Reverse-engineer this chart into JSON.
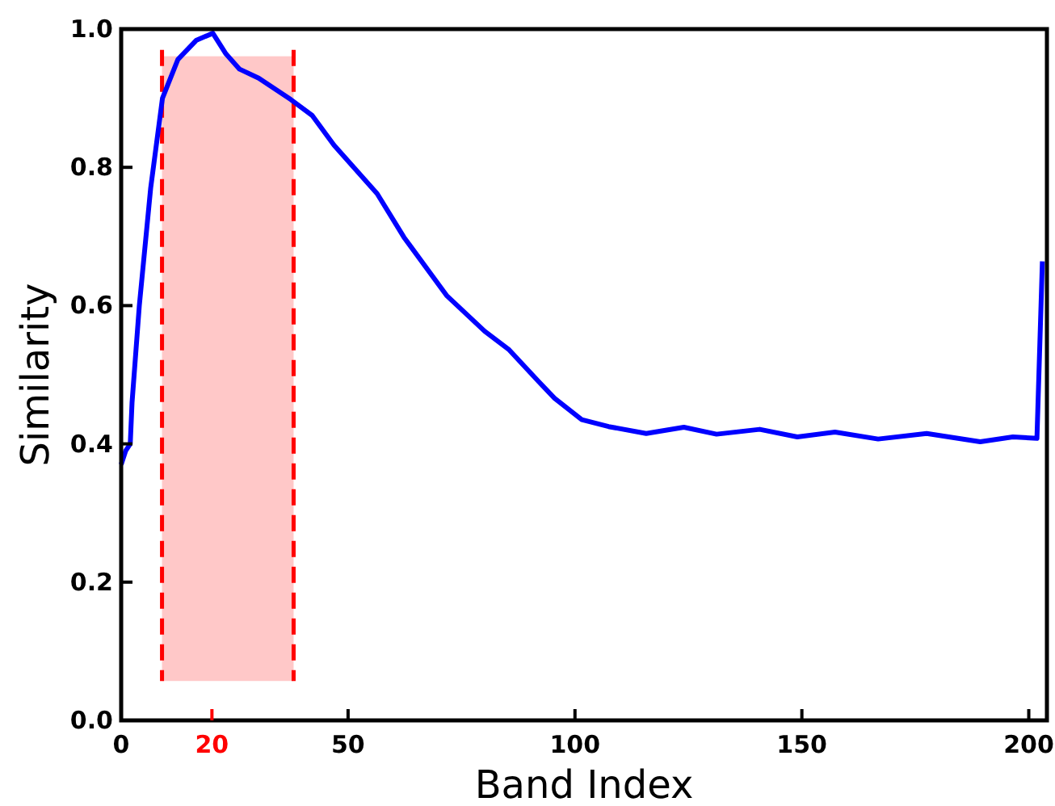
{
  "chart_data": {
    "type": "line",
    "xlabel": "Band Index",
    "ylabel": "Similarity",
    "xlim": [
      0,
      204
    ],
    "ylim": [
      0,
      1
    ],
    "xticks": [
      0,
      20,
      50,
      100,
      150,
      200
    ],
    "yticks": [
      {
        "value": 0,
        "label": "0.0"
      },
      {
        "value": 0.2,
        "label": "0.2"
      },
      {
        "value": 0.4,
        "label": "0.4"
      },
      {
        "value": 0.6,
        "label": "0.6"
      },
      {
        "value": 0.8,
        "label": "0.8"
      },
      {
        "value": 1,
        "label": "1.0"
      }
    ],
    "bands": [
      {
        "axis": "x",
        "from": 9,
        "to": 38,
        "color": "#ffc8c8"
      }
    ],
    "ref_lines": [
      {
        "axis": "x",
        "value": 9,
        "color": "#ff0000",
        "line_style": "dashed"
      },
      {
        "axis": "x",
        "value": 38,
        "color": "#ff0000",
        "line_style": "dashed"
      }
    ],
    "series": [
      {
        "color": "#0000ff",
        "x": [
          0,
          1,
          2,
          2.4,
          4,
          6.5,
          9.1,
          12.5,
          16.6,
          20.2,
          23.1,
          26.1,
          30.3,
          37.4,
          42.1,
          46.9,
          56.4,
          62.3,
          71.8,
          80.1,
          85.5,
          92,
          95.5,
          101.5,
          107.4,
          115.7,
          124,
          131.2,
          140.7,
          149,
          157.3,
          166.8,
          177.5,
          189.3,
          196.5,
          201.8,
          203
        ],
        "values": [
          0.37,
          0.39,
          0.4,
          0.46,
          0.6,
          0.77,
          0.9,
          0.956,
          0.984,
          0.994,
          0.964,
          0.942,
          0.929,
          0.898,
          0.875,
          0.832,
          0.762,
          0.699,
          0.614,
          0.563,
          0.536,
          0.49,
          0.466,
          0.435,
          0.425,
          0.415,
          0.424,
          0.414,
          0.421,
          0.41,
          0.417,
          0.407,
          0.415,
          0.403,
          0.41,
          0.408,
          0.664
        ]
      }
    ],
    "grid": false,
    "line_style": "solid"
  }
}
